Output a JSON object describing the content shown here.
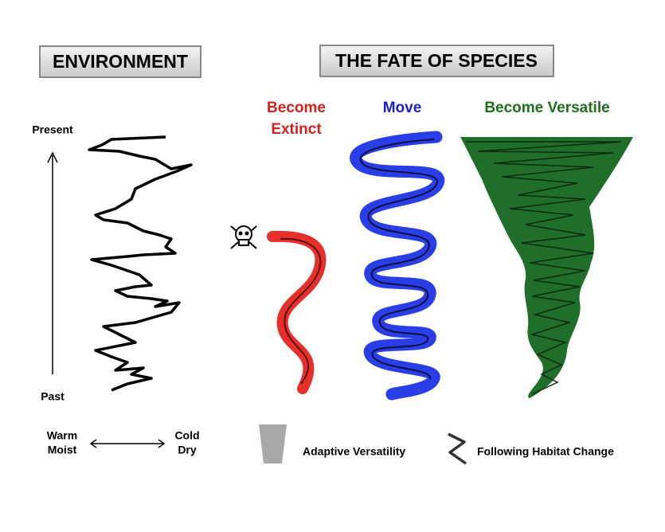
{
  "header": {
    "environment": "ENVIRONMENT",
    "fate": "THE FATE OF SPECIES"
  },
  "columns": [
    {
      "label_lines": [
        "Become",
        "Extinct"
      ]
    },
    {
      "label": "Move"
    },
    {
      "label": "Become Versatile"
    }
  ],
  "time_axis": {
    "top": "Present",
    "bottom": "Past"
  },
  "environment_axis": {
    "left": [
      "Warm",
      "Moist"
    ],
    "right": [
      "Cold",
      "Dry"
    ]
  },
  "legend": [
    "Adaptive Versatility",
    "Following Habitat Change"
  ]
}
